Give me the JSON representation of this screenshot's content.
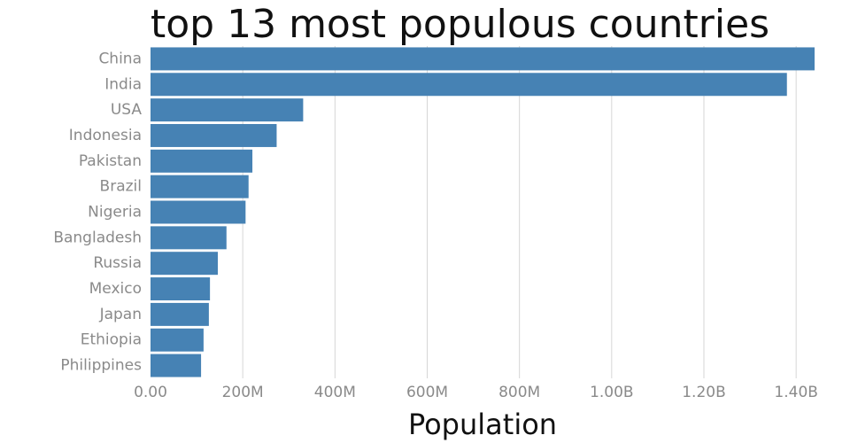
{
  "chart_data": {
    "type": "bar",
    "orientation": "horizontal",
    "title": "top 13 most populous countries",
    "xlabel": "Population",
    "ylabel": "",
    "categories": [
      "China",
      "India",
      "USA",
      "Indonesia",
      "Pakistan",
      "Brazil",
      "Nigeria",
      "Bangladesh",
      "Russia",
      "Mexico",
      "Japan",
      "Ethiopia",
      "Philippines"
    ],
    "values": [
      1440000000,
      1380000000,
      331000000,
      273500000,
      220900000,
      212600000,
      206100000,
      164700000,
      145900000,
      128900000,
      126500000,
      115000000,
      109600000
    ],
    "xlim": [
      0,
      1440000000
    ],
    "xticks": [
      0,
      200000000,
      400000000,
      600000000,
      800000000,
      1000000000,
      1200000000,
      1400000000
    ],
    "xtick_labels": [
      "0.00",
      "200M",
      "400M",
      "600M",
      "800M",
      "1.00B",
      "1.20B",
      "1.40B"
    ],
    "grid": true,
    "legend": "none",
    "bar_color": "#4682b4"
  }
}
